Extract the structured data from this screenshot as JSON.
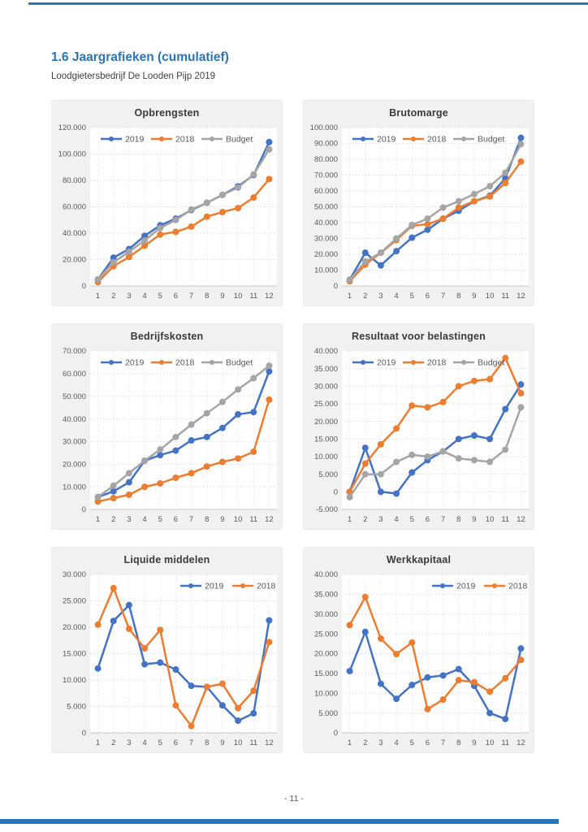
{
  "page": {
    "heading": "1.6 Jaargrafieken (cumulatief)",
    "subtitle": "Loodgietersbedrijf De Looden Pijp 2019",
    "page_number": "- 11 -",
    "heading_color": "#2E74B5",
    "rule_color": "#2E75B6"
  },
  "palette": {
    "series_2019": "#4472C4",
    "series_2018": "#ED7D31",
    "series_budget": "#A5A5A5",
    "panel_bg": "#F1F1F1",
    "grid_line": "#DDDDDD",
    "axis_text": "#595959"
  },
  "months": [
    "1",
    "2",
    "3",
    "4",
    "5",
    "6",
    "7",
    "8",
    "9",
    "10",
    "11",
    "12"
  ],
  "chart_data": [
    {
      "id": "opbrengsten",
      "type": "line",
      "title": "Opbrengsten",
      "ylim": [
        0,
        120000
      ],
      "ystep": 20000,
      "legend_pos": "center",
      "grid": true,
      "categories": [
        "1",
        "2",
        "3",
        "4",
        "5",
        "6",
        "7",
        "8",
        "9",
        "10",
        "11",
        "12"
      ],
      "series": [
        {
          "name": "2019",
          "color": "#4472C4",
          "values": [
            5000,
            21500,
            28000,
            38000,
            46000,
            51000,
            57500,
            63000,
            69000,
            75500,
            84000,
            109000
          ]
        },
        {
          "name": "2018",
          "color": "#ED7D31",
          "values": [
            3000,
            15000,
            22000,
            30500,
            39000,
            41000,
            45000,
            52500,
            56000,
            59000,
            67000,
            81000
          ]
        },
        {
          "name": "Budget",
          "color": "#A5A5A5",
          "values": [
            5000,
            18000,
            26000,
            34500,
            44000,
            50000,
            58000,
            63000,
            69000,
            74500,
            84500,
            103500
          ]
        }
      ]
    },
    {
      "id": "brutomarge",
      "type": "line",
      "title": "Brutomarge",
      "ylim": [
        0,
        100000
      ],
      "ystep": 10000,
      "legend_pos": "center",
      "grid": true,
      "categories": [
        "1",
        "2",
        "3",
        "4",
        "5",
        "6",
        "7",
        "8",
        "9",
        "10",
        "11",
        "12"
      ],
      "series": [
        {
          "name": "2019",
          "color": "#4472C4",
          "values": [
            4000,
            21000,
            13000,
            22000,
            30500,
            35500,
            42500,
            47500,
            53500,
            57000,
            68000,
            93500
          ]
        },
        {
          "name": "2018",
          "color": "#ED7D31",
          "values": [
            3000,
            13500,
            21000,
            29000,
            38000,
            39000,
            42500,
            49500,
            53500,
            56500,
            65000,
            78500
          ]
        },
        {
          "name": "Budget",
          "color": "#A5A5A5",
          "values": [
            4000,
            15500,
            21000,
            30000,
            38500,
            42500,
            49500,
            53500,
            58000,
            63000,
            71500,
            89500
          ]
        }
      ]
    },
    {
      "id": "bedrijfskosten",
      "type": "line",
      "title": "Bedrijfskosten",
      "ylim": [
        0,
        70000
      ],
      "ystep": 10000,
      "legend_pos": "center",
      "grid": true,
      "categories": [
        "1",
        "2",
        "3",
        "4",
        "5",
        "6",
        "7",
        "8",
        "9",
        "10",
        "11",
        "12"
      ],
      "series": [
        {
          "name": "2019",
          "color": "#4472C4",
          "values": [
            5500,
            8000,
            12000,
            21500,
            24000,
            26000,
            30500,
            32000,
            36000,
            42000,
            43000,
            61000
          ]
        },
        {
          "name": "2018",
          "color": "#ED7D31",
          "values": [
            3500,
            5000,
            6500,
            10000,
            11500,
            14000,
            16000,
            19000,
            21000,
            22500,
            25500,
            48500
          ]
        },
        {
          "name": "Budget",
          "color": "#A5A5A5",
          "values": [
            5500,
            10500,
            16000,
            21500,
            26500,
            32000,
            37500,
            42500,
            47500,
            53000,
            58000,
            63500
          ]
        }
      ]
    },
    {
      "id": "resultaat-voor-belastingen",
      "type": "line",
      "title": "Resultaat voor belastingen",
      "ylim": [
        -5000,
        40000
      ],
      "ystep": 5000,
      "legend_pos": "center",
      "grid": true,
      "categories": [
        "1",
        "2",
        "3",
        "4",
        "5",
        "6",
        "7",
        "8",
        "9",
        "10",
        "11",
        "12"
      ],
      "series": [
        {
          "name": "2019",
          "color": "#4472C4",
          "values": [
            0,
            12500,
            0,
            -500,
            5500,
            9000,
            11500,
            15000,
            16000,
            15000,
            23500,
            30500
          ]
        },
        {
          "name": "2018",
          "color": "#ED7D31",
          "values": [
            0,
            8000,
            13500,
            18000,
            24500,
            24000,
            25500,
            30000,
            31500,
            32000,
            38000,
            28000
          ]
        },
        {
          "name": "Budget",
          "color": "#A5A5A5",
          "values": [
            -1500,
            5000,
            5000,
            8500,
            10500,
            10000,
            11500,
            9500,
            9000,
            8500,
            12000,
            24000
          ]
        }
      ]
    },
    {
      "id": "liquide-middelen",
      "type": "line",
      "title": "Liquide middelen",
      "ylim": [
        0,
        30000
      ],
      "ystep": 5000,
      "legend_pos": "right",
      "grid": true,
      "categories": [
        "1",
        "2",
        "3",
        "4",
        "5",
        "6",
        "7",
        "8",
        "9",
        "10",
        "11",
        "12"
      ],
      "series": [
        {
          "name": "2019",
          "color": "#4472C4",
          "values": [
            12200,
            21200,
            24200,
            13000,
            13300,
            12000,
            8900,
            8700,
            5200,
            2300,
            3700,
            21300
          ]
        },
        {
          "name": "2018",
          "color": "#ED7D31",
          "values": [
            20500,
            27400,
            19700,
            16000,
            19500,
            5200,
            1300,
            8700,
            9300,
            4700,
            8000,
            17200
          ]
        }
      ]
    },
    {
      "id": "werkkapitaal",
      "type": "line",
      "title": "Werkkapitaal",
      "ylim": [
        0,
        40000
      ],
      "ystep": 5000,
      "legend_pos": "right",
      "grid": true,
      "categories": [
        "1",
        "2",
        "3",
        "4",
        "5",
        "6",
        "7",
        "8",
        "9",
        "10",
        "11",
        "12"
      ],
      "series": [
        {
          "name": "2019",
          "color": "#4472C4",
          "values": [
            15600,
            25500,
            12400,
            8600,
            12100,
            14000,
            14500,
            16100,
            11900,
            5000,
            3500,
            21300
          ]
        },
        {
          "name": "2018",
          "color": "#ED7D31",
          "values": [
            27200,
            34300,
            23800,
            19900,
            22800,
            6000,
            8400,
            13300,
            12800,
            10400,
            13800,
            18400
          ]
        }
      ]
    }
  ]
}
